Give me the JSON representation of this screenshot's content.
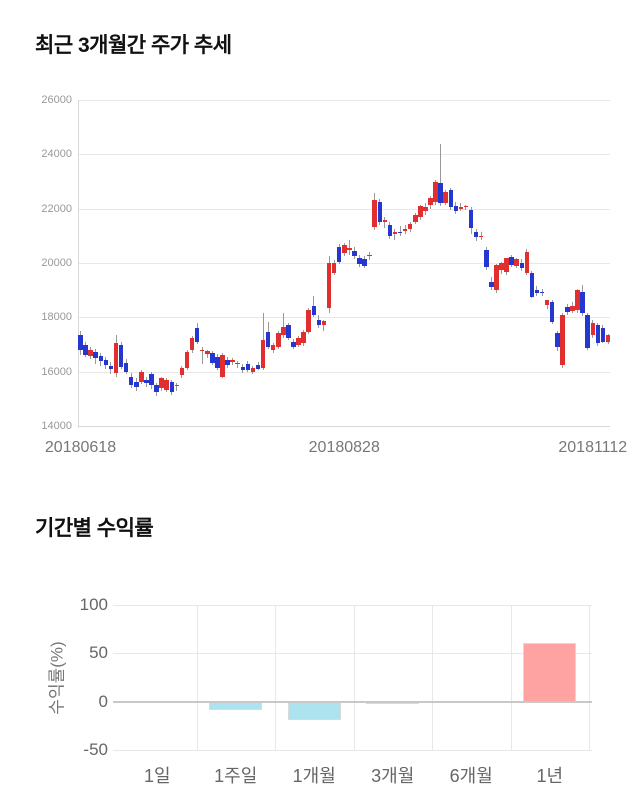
{
  "price_chart": {
    "title": "최근 3개월간 주가 추세"
  },
  "returns_chart": {
    "title": "기간별 수익률",
    "ylabel": "수익률(%)"
  },
  "colors": {
    "candle_up": "#e12e2e",
    "candle_down": "#2438d0",
    "wick": "#999999",
    "bar_negative": "#ace3ef",
    "bar_positive": "#ffa2a2",
    "bar_border": "#dadada",
    "gridline": "#e8e8e8",
    "zero_line": "#c8c8c8"
  },
  "chart_data": [
    {
      "type": "candlestick",
      "title": "최근 3개월간 주가 추세",
      "ylim": [
        14000,
        26000
      ],
      "y_ticks": [
        26000,
        24000,
        22000,
        20000,
        18000,
        16000,
        14000
      ],
      "x_tick_labels": [
        "20180618",
        "20180828",
        "20181112"
      ],
      "x_tick_indices": [
        0,
        52,
        101
      ],
      "grid": true,
      "candles_ohlc": [
        [
          17350,
          17500,
          16600,
          16800
        ],
        [
          16990,
          17100,
          16550,
          16620
        ],
        [
          16560,
          16900,
          16450,
          16800
        ],
        [
          16740,
          16850,
          16300,
          16490
        ],
        [
          16560,
          16700,
          16200,
          16380
        ],
        [
          16440,
          16550,
          16100,
          16260
        ],
        [
          16200,
          16350,
          15900,
          16100
        ],
        [
          15940,
          17350,
          15800,
          17040
        ],
        [
          17000,
          17100,
          16100,
          16180
        ],
        [
          16330,
          16450,
          15900,
          16000
        ],
        [
          15820,
          15950,
          15400,
          15510
        ],
        [
          15630,
          15750,
          15300,
          15450
        ],
        [
          15630,
          16050,
          15550,
          16000
        ],
        [
          15700,
          15800,
          15450,
          15600
        ],
        [
          15900,
          16000,
          15350,
          15500
        ],
        [
          15510,
          15600,
          15100,
          15260
        ],
        [
          15390,
          15800,
          15300,
          15760
        ],
        [
          15330,
          15750,
          15250,
          15700
        ],
        [
          15630,
          15700,
          15150,
          15260
        ],
        [
          15480,
          15600,
          15300,
          15520
        ],
        [
          15880,
          16200,
          15750,
          16130
        ],
        [
          16130,
          16800,
          16050,
          16740
        ],
        [
          16800,
          17300,
          16700,
          17230
        ],
        [
          17600,
          17780,
          17000,
          17100
        ],
        [
          16760,
          16900,
          16300,
          16800
        ],
        [
          16640,
          16800,
          16500,
          16760
        ],
        [
          16680,
          16750,
          16250,
          16310
        ],
        [
          16550,
          16650,
          16050,
          16120
        ],
        [
          15820,
          16700,
          15750,
          16610
        ],
        [
          16440,
          16550,
          16150,
          16260
        ],
        [
          16350,
          16500,
          16250,
          16420
        ],
        [
          16300,
          16400,
          16150,
          16320
        ],
        [
          16180,
          16280,
          15950,
          16060
        ],
        [
          16300,
          16380,
          16000,
          16060
        ],
        [
          16000,
          16200,
          15900,
          16120
        ],
        [
          16250,
          16350,
          16050,
          16100
        ],
        [
          16120,
          18150,
          16050,
          17170
        ],
        [
          17470,
          17840,
          16850,
          16920
        ],
        [
          16800,
          17050,
          16700,
          16990
        ],
        [
          16920,
          17500,
          16850,
          17410
        ],
        [
          17350,
          18150,
          17250,
          17660
        ],
        [
          17720,
          17800,
          17150,
          17230
        ],
        [
          17100,
          17200,
          16850,
          16920
        ],
        [
          16990,
          17300,
          16900,
          17230
        ],
        [
          17040,
          17550,
          16950,
          17470
        ],
        [
          17470,
          18350,
          17400,
          18270
        ],
        [
          18400,
          18800,
          18000,
          18100
        ],
        [
          17900,
          18100,
          17610,
          17700
        ],
        [
          17700,
          17900,
          17500,
          17850
        ],
        [
          18330,
          20250,
          18160,
          20000
        ],
        [
          19650,
          20100,
          19550,
          20000
        ],
        [
          20600,
          20700,
          19950,
          20050
        ],
        [
          20370,
          20750,
          20250,
          20660
        ],
        [
          20500,
          20850,
          20300,
          20550
        ],
        [
          20450,
          20600,
          20150,
          20250
        ],
        [
          20200,
          20300,
          19850,
          19950
        ],
        [
          20150,
          20250,
          19800,
          19900
        ],
        [
          20250,
          20400,
          20100,
          20300
        ],
        [
          21340,
          22580,
          21200,
          22320
        ],
        [
          22260,
          22350,
          21400,
          21520
        ],
        [
          21500,
          21700,
          21300,
          21600
        ],
        [
          21400,
          21500,
          20900,
          21000
        ],
        [
          21050,
          21250,
          20850,
          21150
        ],
        [
          21150,
          21350,
          21000,
          21100
        ],
        [
          21200,
          21400,
          21050,
          21250
        ],
        [
          21250,
          21500,
          21150,
          21450
        ],
        [
          21520,
          21850,
          21450,
          21770
        ],
        [
          21700,
          22150,
          21600,
          22100
        ],
        [
          21900,
          22200,
          21750,
          22050
        ],
        [
          22140,
          22450,
          22000,
          22380
        ],
        [
          22260,
          23050,
          22150,
          22990
        ],
        [
          22940,
          24380,
          22100,
          22200
        ],
        [
          22220,
          22700,
          22130,
          22620
        ],
        [
          22680,
          22750,
          21950,
          22070
        ],
        [
          22100,
          22250,
          21800,
          21900
        ],
        [
          22000,
          22200,
          21900,
          22050
        ],
        [
          22050,
          22150,
          21950,
          22100
        ],
        [
          21950,
          22050,
          21050,
          21290
        ],
        [
          21150,
          21250,
          20800,
          20970
        ],
        [
          20980,
          21150,
          20850,
          21000
        ],
        [
          20480,
          20600,
          19750,
          19860
        ],
        [
          19310,
          19500,
          19000,
          19130
        ],
        [
          19000,
          19950,
          18900,
          19920
        ],
        [
          19740,
          20050,
          19600,
          19990
        ],
        [
          19680,
          20200,
          19550,
          20180
        ],
        [
          20230,
          20300,
          19850,
          19920
        ],
        [
          19890,
          20200,
          19800,
          20140
        ],
        [
          20000,
          20150,
          19700,
          19830
        ],
        [
          19620,
          20500,
          19550,
          20420
        ],
        [
          19630,
          19700,
          18700,
          18760
        ],
        [
          19010,
          19150,
          18800,
          18890
        ],
        [
          18950,
          19050,
          18800,
          18920
        ],
        [
          18450,
          18650,
          18300,
          18640
        ],
        [
          18570,
          18650,
          17750,
          17840
        ],
        [
          17410,
          17500,
          16750,
          16920
        ],
        [
          16240,
          18150,
          16130,
          18080
        ],
        [
          18390,
          18500,
          18100,
          18200
        ],
        [
          18230,
          18550,
          18150,
          18420
        ],
        [
          18270,
          19050,
          18150,
          19010
        ],
        [
          18950,
          19200,
          18050,
          18150
        ],
        [
          18080,
          18150,
          16800,
          16860
        ],
        [
          17350,
          17900,
          17250,
          17790
        ],
        [
          17720,
          17800,
          16950,
          17060
        ],
        [
          17600,
          17700,
          17050,
          17100
        ],
        [
          17100,
          17400,
          17000,
          17350
        ]
      ]
    },
    {
      "type": "bar",
      "title": "기간별 수익률",
      "categories": [
        "1일",
        "1주일",
        "1개월",
        "3개월",
        "6개월",
        "1년"
      ],
      "values": [
        0,
        -9,
        -19,
        -2,
        0,
        61
      ],
      "ylabel": "수익률(%)",
      "y_ticks": [
        100,
        50,
        0,
        -50
      ],
      "ylim": [
        -50,
        100
      ],
      "grid": true,
      "legend": "none"
    }
  ]
}
